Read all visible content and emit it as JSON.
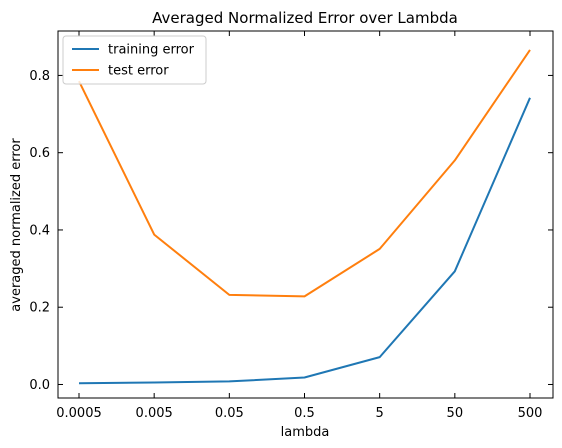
{
  "chart_data": {
    "type": "line",
    "title": "Averaged Normalized Error over Lambda",
    "xlabel": "lambda",
    "ylabel": "averaged normalized error",
    "categories": [
      "0.0005",
      "0.005",
      "0.05",
      "0.5",
      "5",
      "50",
      "500"
    ],
    "ylim": [
      -0.035,
      0.915
    ],
    "yticks": [
      "0.0",
      "0.2",
      "0.4",
      "0.6",
      "0.8"
    ],
    "yticks_values": [
      0.0,
      0.2,
      0.4,
      0.6,
      0.8
    ],
    "series": [
      {
        "name": "training error",
        "color": "#1f77b4",
        "values": [
          0.003,
          0.005,
          0.008,
          0.018,
          0.071,
          0.293,
          0.742
        ]
      },
      {
        "name": "test error",
        "color": "#ff7f0e",
        "values": [
          0.785,
          0.388,
          0.232,
          0.228,
          0.351,
          0.58,
          0.866
        ]
      }
    ],
    "legend": "top-left",
    "grid": false
  }
}
